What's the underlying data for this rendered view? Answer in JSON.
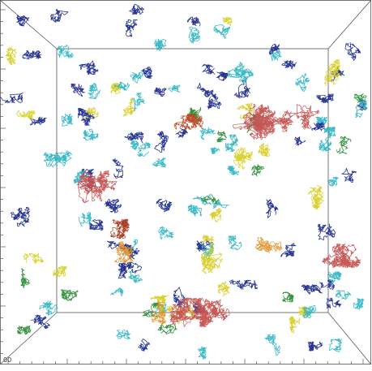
{
  "scene": {
    "corner_label": "00"
  }
}
